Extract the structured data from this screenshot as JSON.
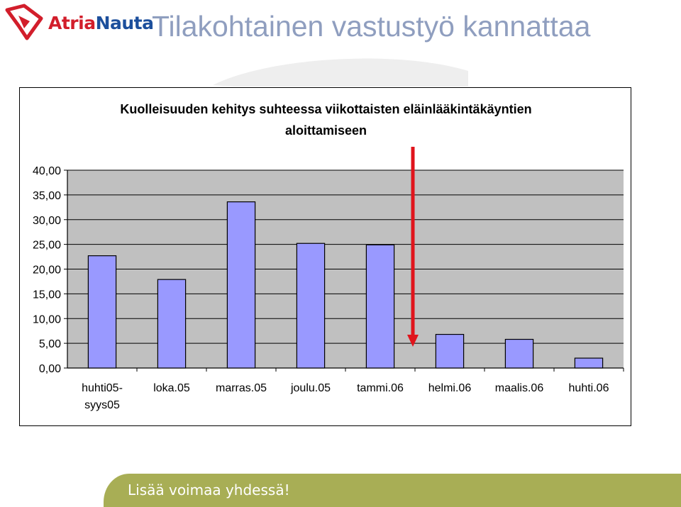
{
  "header": {
    "logo_brand": "Atria",
    "logo_brand2": "Nauta",
    "title": "Tilakohtainen vastustyö kannattaa"
  },
  "chart_data": {
    "type": "bar",
    "title_line1": "Kuolleisuuden kehitys suhteessa viikottaisten eläinlääkintäkäyntien",
    "title_line2": "aloittamiseen",
    "categories": [
      [
        "huhti05-",
        "syys05"
      ],
      [
        "loka.05"
      ],
      [
        "marras.05"
      ],
      [
        "joulu.05"
      ],
      [
        "tammi.06"
      ],
      [
        "helmi.06"
      ],
      [
        "maalis.06"
      ],
      [
        "huhti.06"
      ]
    ],
    "values": [
      22.7,
      17.9,
      33.6,
      25.2,
      24.9,
      6.8,
      5.8,
      2.0
    ],
    "ylim": [
      0,
      40
    ],
    "yticks": [
      "0,00",
      "5,00",
      "10,00",
      "15,00",
      "20,00",
      "25,00",
      "30,00",
      "35,00",
      "40,00"
    ],
    "grid": true,
    "colors": {
      "bar_fill": "#9999ff",
      "plot_background": "#c0c0c0",
      "arrow": "#e0141c"
    },
    "annotation": "red-arrow-between-tammi06-and-helmi06"
  },
  "footer": {
    "slogan": "Lisää voimaa yhdessä!"
  }
}
